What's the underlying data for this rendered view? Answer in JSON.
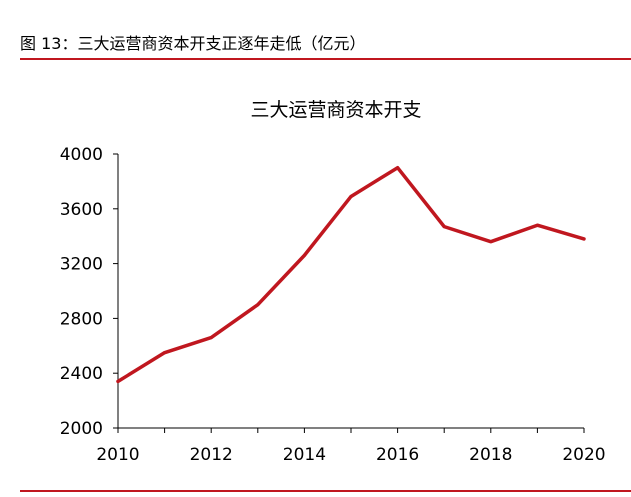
{
  "figure": {
    "caption": "图 13：三大运营商资本开支正逐年走低（亿元）"
  },
  "colors": {
    "accent": "#c0171f",
    "axis": "#000000",
    "text": "#000000"
  },
  "chart_data": {
    "type": "line",
    "title": "三大运营商资本开支",
    "xlabel": "",
    "ylabel": "",
    "x": [
      2010,
      2011,
      2012,
      2013,
      2014,
      2015,
      2016,
      2017,
      2018,
      2019,
      2020
    ],
    "series": [
      {
        "values": [
          2340,
          2550,
          2660,
          2900,
          3260,
          3690,
          3900,
          3470,
          3360,
          3480,
          3380
        ]
      }
    ],
    "xlim": [
      2010,
      2020
    ],
    "ylim": [
      2000,
      4000
    ],
    "xticks": [
      "2010",
      "2012",
      "2014",
      "2016",
      "2018",
      "2020"
    ],
    "yticks": [
      "4000",
      "3600",
      "3200",
      "2800",
      "2400",
      "2000"
    ],
    "grid": false,
    "legend": "none"
  }
}
